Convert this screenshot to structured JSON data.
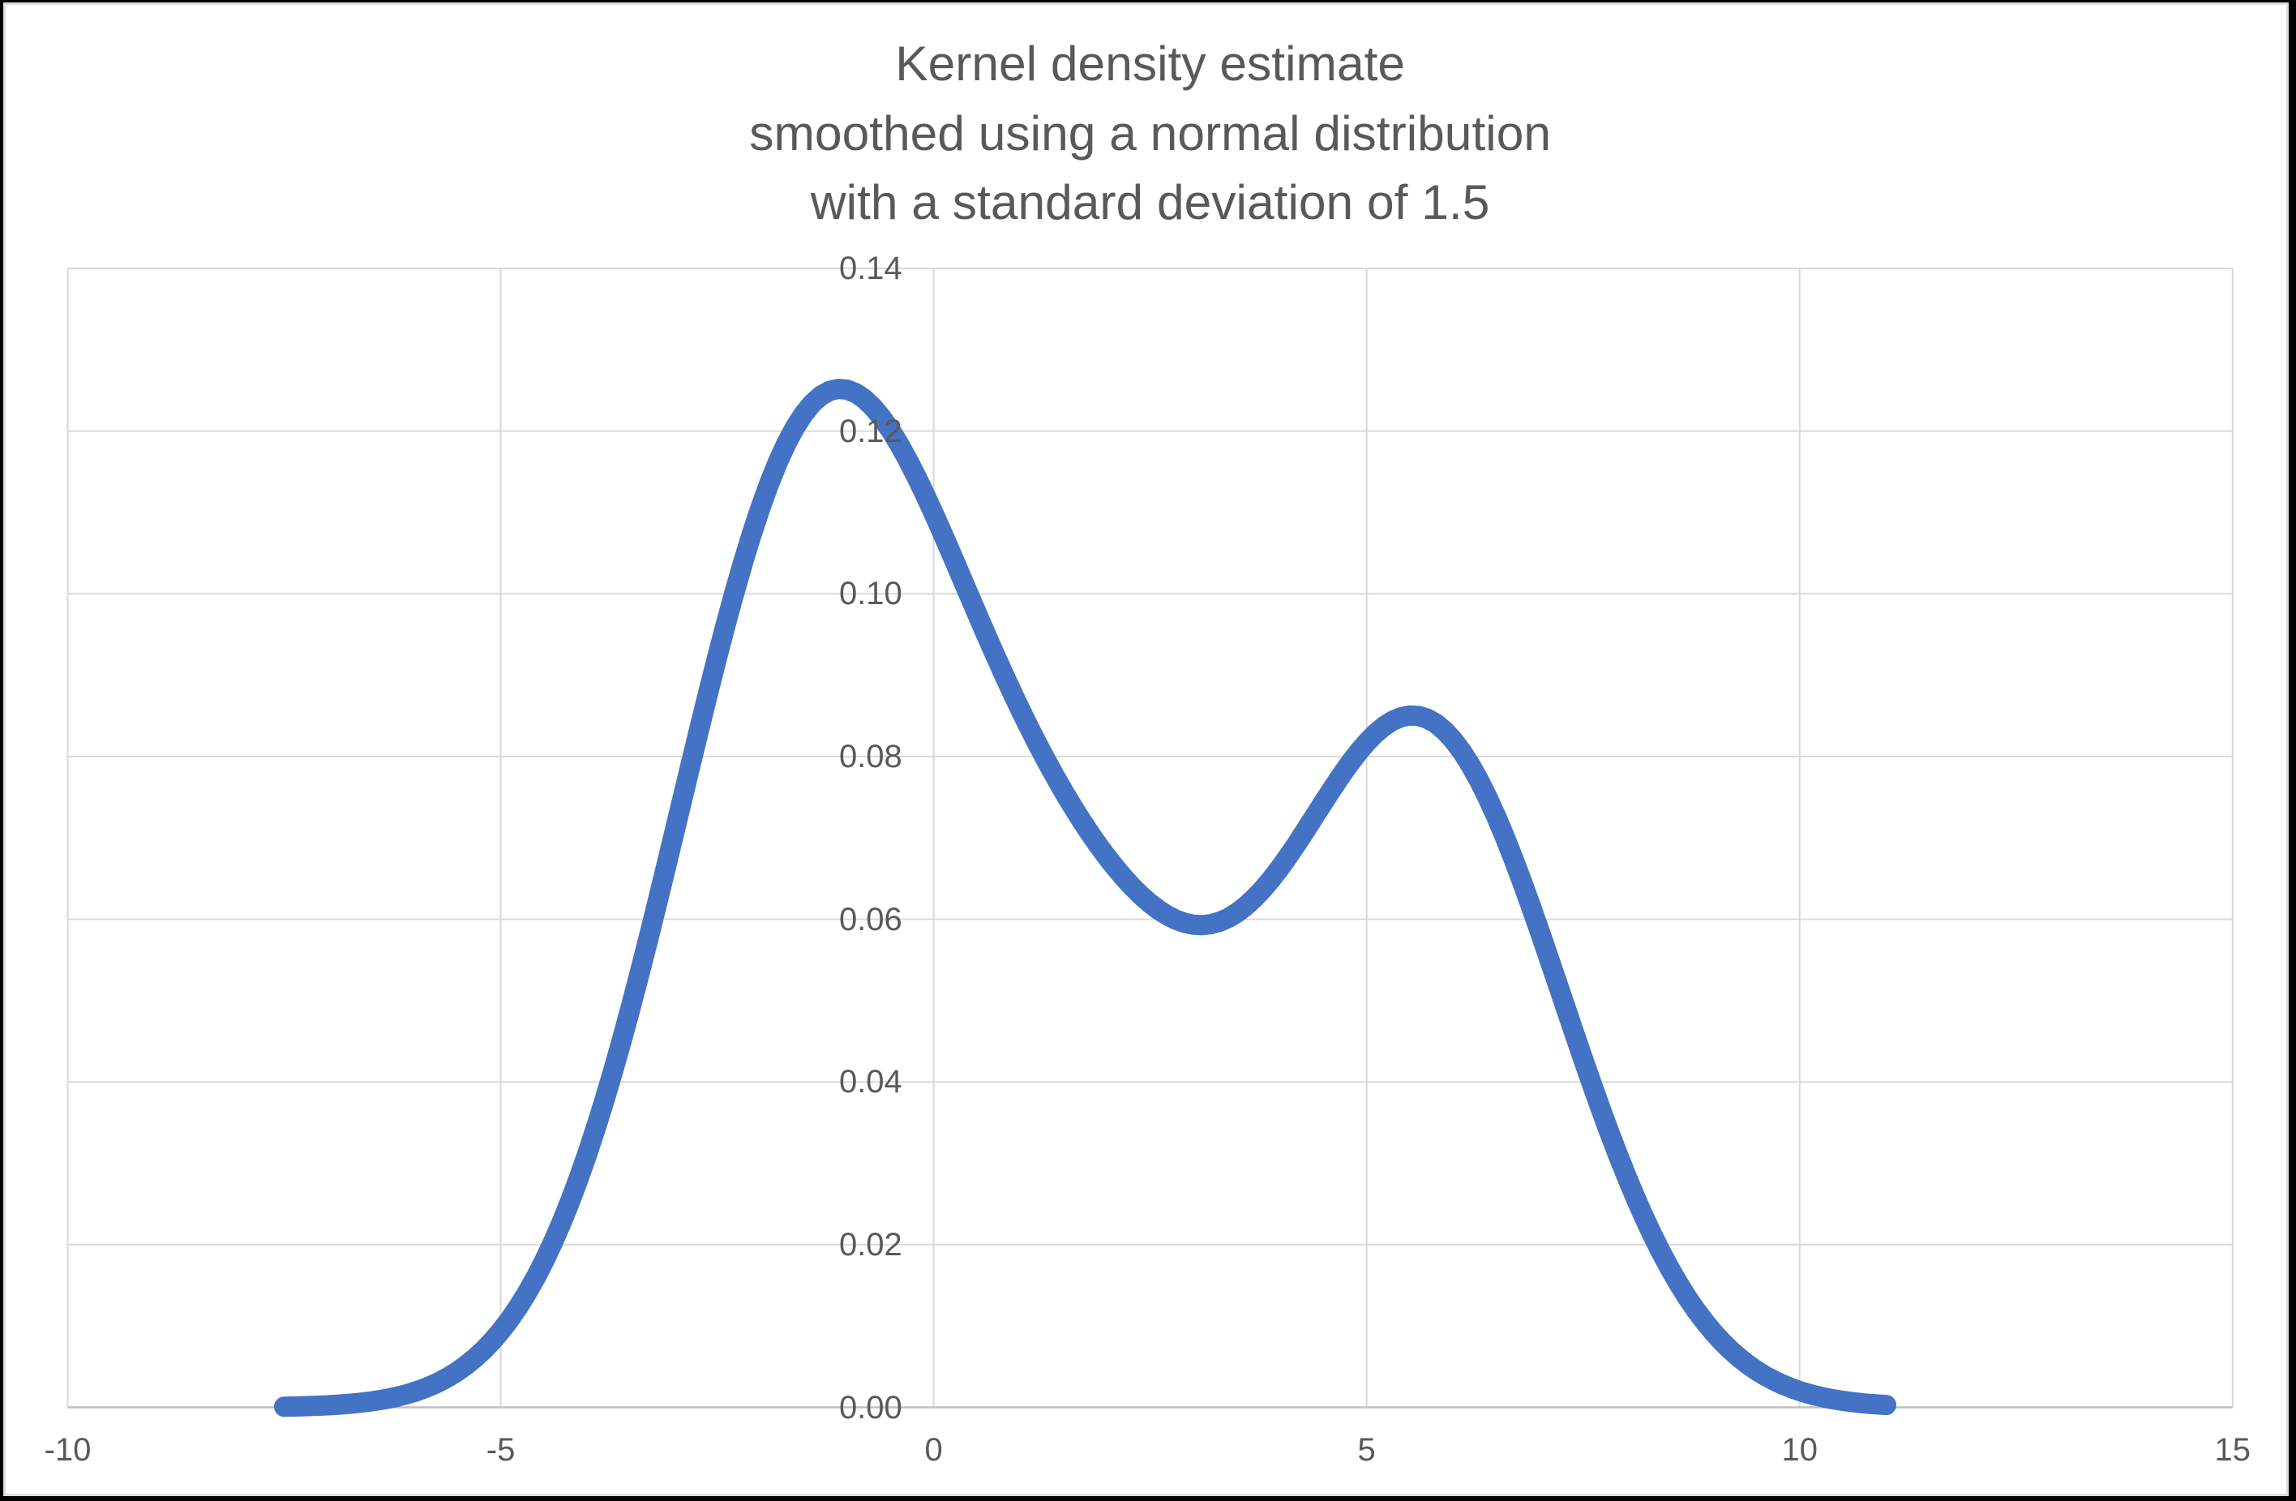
{
  "page": {
    "background": "#000000"
  },
  "chart_data": {
    "type": "line",
    "title": "Kernel density estimate\nsmoothed using a normal distribution\nwith a standard deviation of 1.5",
    "title_lines": [
      "Kernel density estimate",
      "smoothed using a normal distribution",
      "with a standard deviation of 1.5"
    ],
    "xlabel": "",
    "ylabel": "",
    "xlim": [
      -10,
      15
    ],
    "ylim": [
      0,
      0.14
    ],
    "x_ticks": {
      "values": [
        -10,
        -5,
        0,
        5,
        10,
        15
      ],
      "labels": [
        "-10",
        "-5",
        "0",
        "5",
        "10",
        "15"
      ]
    },
    "y_ticks": {
      "values": [
        0,
        0.02,
        0.04,
        0.06,
        0.08,
        0.1,
        0.12,
        0.14
      ],
      "labels": [
        "0.00",
        "0.02",
        "0.04",
        "0.06",
        "0.08",
        "0.10",
        "0.12",
        "0.14"
      ]
    },
    "grid": true,
    "legend": "none",
    "series": [
      {
        "name": "Kernel density estimate",
        "color": "#4472C4",
        "x": [
          -7.5,
          -7.4,
          -7.3,
          -7.2,
          -7.1,
          -7.0,
          -6.9,
          -6.8,
          -6.7,
          -6.6,
          -6.5,
          -6.4,
          -6.3,
          -6.2,
          -6.1,
          -6.0,
          -5.9,
          -5.8,
          -5.7,
          -5.6,
          -5.5,
          -5.4,
          -5.3,
          -5.2,
          -5.1,
          -5.0,
          -4.9,
          -4.8,
          -4.7,
          -4.6,
          -4.5,
          -4.4,
          -4.3,
          -4.2,
          -4.1,
          -4.0,
          -3.9,
          -3.8,
          -3.7,
          -3.6,
          -3.5,
          -3.4,
          -3.3,
          -3.2,
          -3.1,
          -3.0,
          -2.9,
          -2.8,
          -2.7,
          -2.6,
          -2.5,
          -2.4,
          -2.3,
          -2.2,
          -2.1,
          -2.0,
          -1.9,
          -1.8,
          -1.7,
          -1.6,
          -1.5,
          -1.4,
          -1.3,
          -1.2,
          -1.1,
          -1.0,
          -0.9,
          -0.8,
          -0.7,
          -0.6,
          -0.5,
          -0.4,
          -0.3,
          -0.2,
          -0.1,
          0.0,
          0.1,
          0.2,
          0.3,
          0.4,
          0.5,
          0.6,
          0.7,
          0.8,
          0.9,
          1.0,
          1.1,
          1.2,
          1.3,
          1.4,
          1.5,
          1.6,
          1.7,
          1.8,
          1.9,
          2.0,
          2.1,
          2.2,
          2.3,
          2.4,
          2.5,
          2.6,
          2.7,
          2.8,
          2.9,
          3.0,
          3.1,
          3.2,
          3.3,
          3.4,
          3.5,
          3.6,
          3.7,
          3.8,
          3.9,
          4.0,
          4.1,
          4.2,
          4.3,
          4.4,
          4.5,
          4.6,
          4.7,
          4.8,
          4.9,
          5.0,
          5.1,
          5.2,
          5.3,
          5.4,
          5.5,
          5.6,
          5.7,
          5.8,
          5.9,
          6.0,
          6.1,
          6.2,
          6.3,
          6.4,
          6.5,
          6.6,
          6.7,
          6.8,
          6.9,
          7.0,
          7.1,
          7.2,
          7.3,
          7.4,
          7.5,
          7.6,
          7.7,
          7.8,
          7.9,
          8.0,
          8.1,
          8.2,
          8.3,
          8.4,
          8.5,
          8.6,
          8.7,
          8.8,
          8.9,
          9.0,
          9.1,
          9.2,
          9.3,
          9.4,
          9.5,
          9.6,
          9.7,
          9.8,
          9.9,
          10.0,
          10.1,
          10.2,
          10.3,
          10.4,
          10.5,
          10.6,
          10.7,
          10.8,
          10.9,
          11.0
        ],
        "y": [
          7.7e-05,
          9.8e-05,
          0.000125,
          0.000158,
          0.000199,
          0.000249,
          0.00031,
          0.000385,
          0.000477,
          0.000587,
          0.00072,
          0.00088,
          0.00107,
          0.001296,
          0.001564,
          0.001878,
          0.002247,
          0.002676,
          0.003175,
          0.003751,
          0.004413,
          0.005171,
          0.006034,
          0.007013,
          0.008118,
          0.009358,
          0.010745,
          0.012288,
          0.013996,
          0.015878,
          0.017941,
          0.020193,
          0.022637,
          0.025278,
          0.028117,
          0.031153,
          0.034384,
          0.037803,
          0.041404,
          0.045175,
          0.049102,
          0.05317,
          0.05736,
          0.061649,
          0.066014,
          0.070429,
          0.074864,
          0.079291,
          0.083678,
          0.087993,
          0.092203,
          0.096277,
          0.100182,
          0.103888,
          0.107365,
          0.110588,
          0.113531,
          0.116173,
          0.118495,
          0.120484,
          0.122129,
          0.123422,
          0.124362,
          0.124949,
          0.125191,
          0.125095,
          0.124676,
          0.123951,
          0.122938,
          0.121661,
          0.120143,
          0.118411,
          0.116491,
          0.114411,
          0.112199,
          0.109882,
          0.107486,
          0.105036,
          0.102554,
          0.100063,
          0.09758,
          0.095122,
          0.092704,
          0.090336,
          0.088028,
          0.085787,
          0.083618,
          0.081525,
          0.07951,
          0.077574,
          0.075718,
          0.073943,
          0.07225,
          0.070638,
          0.069111,
          0.06767,
          0.06632,
          0.065065,
          0.063911,
          0.062866,
          0.061936,
          0.06113,
          0.060458,
          0.059928,
          0.059549,
          0.059328,
          0.059272,
          0.059388,
          0.059677,
          0.060141,
          0.06078,
          0.061588,
          0.062559,
          0.063682,
          0.064945,
          0.06633,
          0.06782,
          0.069392,
          0.071022,
          0.072684,
          0.07435,
          0.075992,
          0.07758,
          0.079085,
          0.080478,
          0.08173,
          0.082816,
          0.08371,
          0.084391,
          0.084841,
          0.085042,
          0.084982,
          0.084653,
          0.084051,
          0.083173,
          0.082023,
          0.080606,
          0.078934,
          0.077019,
          0.074877,
          0.072528,
          0.069992,
          0.067293,
          0.064454,
          0.061502,
          0.058461,
          0.055357,
          0.052217,
          0.049064,
          0.045923,
          0.042815,
          0.039761,
          0.036779,
          0.033887,
          0.031099,
          0.028427,
          0.025881,
          0.023468,
          0.021195,
          0.019066,
          0.017081,
          0.01524,
          0.013543,
          0.011986,
          0.010564,
          0.009273,
          0.008106,
          0.007057,
          0.006118,
          0.005282,
          0.004542,
          0.003889,
          0.003316,
          0.002815,
          0.002381,
          0.002004,
          0.001681,
          0.001403,
          0.001167,
          0.000966,
          0.000796,
          0.000653,
          0.000534,
          0.000435,
          0.000352,
          0.000284
        ]
      }
    ]
  },
  "colors": {
    "curve": "#4472C4",
    "gridline": "#D9D9D9",
    "axis_line": "#BFBFBF",
    "text": "#595959",
    "plot_background": "#FFFFFF",
    "frame": "#000000",
    "inner_border": "#D9D9D9"
  }
}
